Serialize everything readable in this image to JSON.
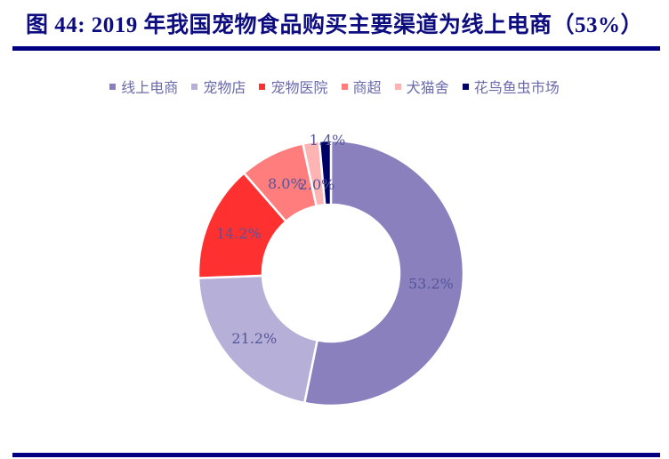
{
  "title": "图 44: 2019 年我国宠物食品购买主要渠道为线上电商（53%）",
  "chart_data": {
    "type": "pie",
    "subtype": "donut",
    "title": "图 44: 2019 年我国宠物食品购买主要渠道为线上电商（53%）",
    "categories": [
      "线上电商",
      "宠物店",
      "宠物医院",
      "商超",
      "犬猫舍",
      "花鸟鱼虫市场"
    ],
    "values": [
      53.2,
      21.2,
      14.2,
      8.0,
      2.0,
      1.4
    ],
    "labels": [
      "53.2%",
      "21.2%",
      "14.2%",
      "8.0%",
      "2.0%",
      "1.4%"
    ],
    "colors": [
      "#8a80be",
      "#b6b0d9",
      "#ff3030",
      "#ff7d7d",
      "#ffb4b4",
      "#000066"
    ],
    "legend_position": "top",
    "unit": "%"
  },
  "legend": [
    {
      "label": "线上电商",
      "color": "#8a80be"
    },
    {
      "label": "宠物店",
      "color": "#b6b0d9"
    },
    {
      "label": "宠物医院",
      "color": "#ff3030"
    },
    {
      "label": "商超",
      "color": "#ff7d7d"
    },
    {
      "label": "犬猫舍",
      "color": "#ffb4b4"
    },
    {
      "label": "花鸟鱼虫市场",
      "color": "#000066"
    }
  ]
}
